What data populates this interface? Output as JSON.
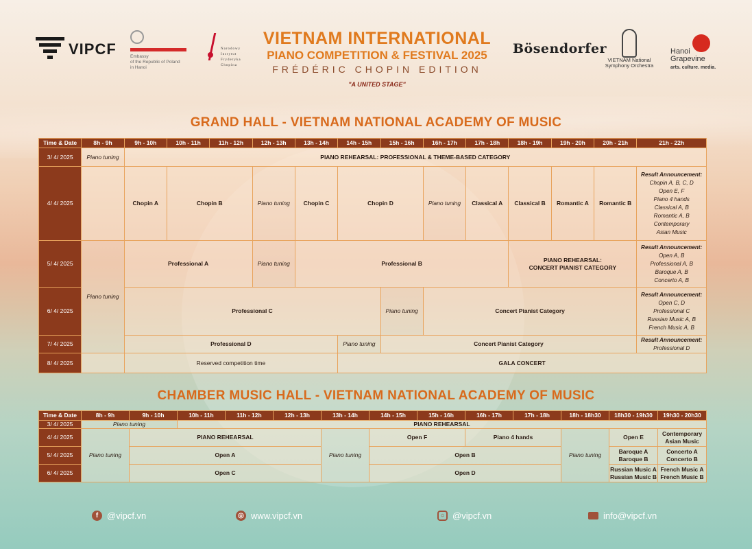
{
  "header": {
    "vipcf_logo": "VIPCF",
    "embassy_text": [
      "Embassy",
      "of the Republic of Poland",
      "in Hanoi"
    ],
    "nifc_text": [
      "Narodowy",
      "Instytut",
      "Fryderyka",
      "Chopina"
    ],
    "title_line1": "VIETNAM INTERNATIONAL",
    "title_line2": "PIANO COMPETITION & FESTIVAL 2025",
    "title_line3": "FRÉDÉRIC CHOPIN EDITION",
    "tagline": "\"A UNITED STAGE\"",
    "bosendorfer": "Bösendorfer",
    "vnso_text": [
      "VIETNAM National",
      "Symphony Orchestra"
    ],
    "grapevine": [
      "Hanoi",
      "Grapevine"
    ],
    "grapevine_sub": "arts. culture. media."
  },
  "grand_hall": {
    "title": "GRAND HALL - VIETNAM NATIONAL ACADEMY OF MUSIC",
    "headers": [
      "Time & Date",
      "8h - 9h",
      "9h - 10h",
      "10h - 11h",
      "11h - 12h",
      "12h - 13h",
      "13h - 14h",
      "14h - 15h",
      "15h - 16h",
      "16h - 17h",
      "17h - 18h",
      "18h - 19h",
      "19h - 20h",
      "20h - 21h",
      "21h - 22h"
    ],
    "dates": [
      "3/ 4/ 2025",
      "4/ 4/ 2025",
      "5/ 4/ 2025",
      "6/ 4/ 2025",
      "7/ 4/ 2025",
      "8/ 4/ 2025"
    ],
    "piano_tuning": "Piano tuning",
    "row1_rehearsal": "PIANO REHEARSAL: PROFESSIONAL & THEME-BASED CATEGORY",
    "row2": [
      "Chopin A",
      "Chopin B",
      "Chopin C",
      "Chopin D",
      "Classical A",
      "Classical B",
      "Romantic A",
      "Romantic B"
    ],
    "row2_results": [
      "Result Announcement:",
      "Chopin A, B, C, D",
      "Open E, F",
      "Piano 4 hands",
      "Classical A, B",
      "Romantic A, B",
      "Contemporary",
      "Asian Music"
    ],
    "row3": [
      "Professional A",
      "Professional B",
      "PIANO REHEARSAL:",
      "CONCERT PIANIST CATEGORY"
    ],
    "row3_results": [
      "Result Announcement:",
      "Open A, B",
      "Professional A, B",
      "Baroque A, B",
      "Concerto A, B"
    ],
    "row4": [
      "Professional C",
      "Concert Pianist Category"
    ],
    "row4_results": [
      "Result Announcement:",
      "Open C, D",
      "Professional C",
      "Russian Music A, B",
      "French Music A, B"
    ],
    "row5": [
      "Professional D",
      "Concert Pianist Category"
    ],
    "row5_results": [
      "Result Announcement:",
      "Professional D"
    ],
    "row6": [
      "Reserved competition time",
      "GALA CONCERT"
    ]
  },
  "chamber_hall": {
    "title": "CHAMBER MUSIC HALL - VIETNAM NATIONAL ACADEMY OF MUSIC",
    "headers": [
      "Time & Date",
      "8h - 9h",
      "9h - 10h",
      "10h - 11h",
      "11h - 12h",
      "12h - 13h",
      "13h - 14h",
      "14h - 15h",
      "15h - 16h",
      "16h - 17h",
      "17h - 18h",
      "18h - 18h30",
      "18h30 - 19h30",
      "19h30 - 20h30"
    ],
    "dates": [
      "3/ 4/ 2025",
      "4/ 4/ 2025",
      "5/ 4/ 2025",
      "6/ 4/ 2025"
    ],
    "piano_tuning": "Piano tuning",
    "piano_rehearsal": "PIANO REHEARSAL",
    "row2": [
      "PIANO REHEARSAL",
      "Open F",
      "Piano 4 hands",
      "Open E",
      "Contemporary",
      "Asian Music"
    ],
    "row3": [
      "Open A",
      "Open B",
      "Baroque A",
      "Baroque B",
      "Concerto A",
      "Concerto B"
    ],
    "row4": [
      "Open C",
      "Open D",
      "Russian Music A",
      "Russian Music B",
      "French Music A",
      "French Music B"
    ]
  },
  "footer": {
    "facebook": "@vipcf.vn",
    "website": "www.vipcf.vn",
    "instagram": "@vipcf.vn",
    "email": "info@vipcf.vn"
  }
}
